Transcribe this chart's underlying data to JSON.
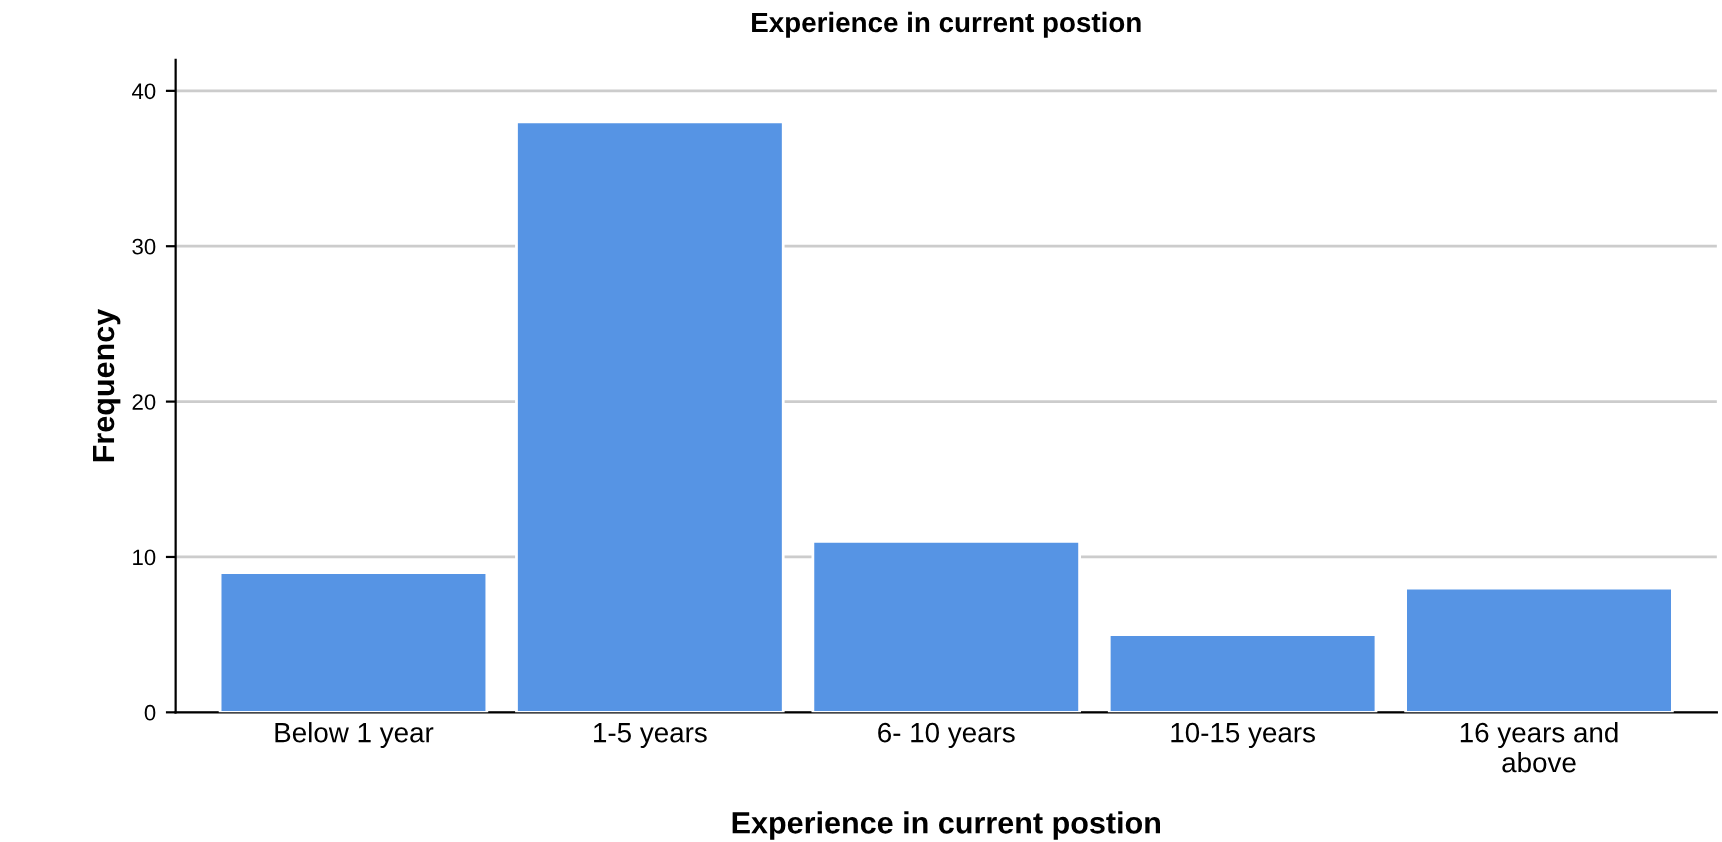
{
  "chart_data": {
    "type": "bar",
    "title": "Experience in current postion",
    "xlabel": "Experience in current postion",
    "ylabel": "Frequency",
    "categories": [
      "Below 1 year",
      "1-5 years",
      "6- 10 years",
      "10-15 years",
      "16 years and\nabove"
    ],
    "values": [
      9,
      38,
      11,
      5,
      8
    ],
    "color": "#5694e4",
    "ylim": [
      0,
      42
    ],
    "yticks": [
      0,
      10,
      20,
      30,
      40
    ],
    "grid": "y",
    "legend": false
  }
}
